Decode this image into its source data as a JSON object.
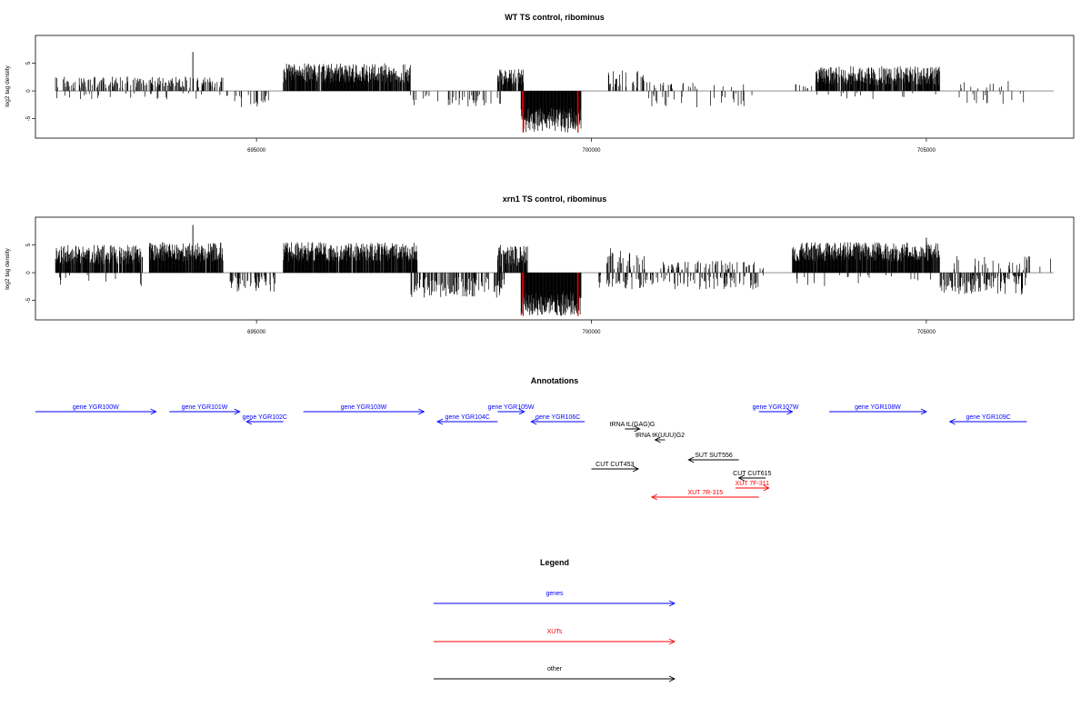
{
  "colors": {
    "gene": "#0000ff",
    "xut": "#ff0000",
    "other": "#000000",
    "signal": "#000000",
    "highlight": "#cc0000",
    "axis": "#000000",
    "baseline": "#808080"
  },
  "chart_data": [
    {
      "type": "bar",
      "title": "WT TS control, ribominus",
      "ylabel": "log2 tag density",
      "xlim": [
        691700,
        707200
      ],
      "ylim": [
        -8.5,
        10
      ],
      "xticks": [
        695000,
        700000,
        705000
      ],
      "xtick_labels": [
        "695000",
        "700000",
        "705000"
      ],
      "yticks": [
        -5,
        0,
        5
      ],
      "ytick_labels": [
        "-5",
        "0",
        "5"
      ],
      "seed": 7,
      "bands": [
        {
          "start": 692000,
          "end": 694500,
          "sign": 1,
          "lo": 0.5,
          "hi": 2.6,
          "density": 0.35,
          "spikes": [
            [
              694050,
              7.0
            ]
          ]
        },
        {
          "start": 692000,
          "end": 694500,
          "sign": -1,
          "lo": 0.4,
          "hi": 1.5,
          "density": 0.05
        },
        {
          "start": 694500,
          "end": 695200,
          "sign": -1,
          "lo": 0.5,
          "hi": 3.0,
          "density": 0.12
        },
        {
          "start": 695400,
          "end": 697300,
          "sign": 1,
          "lo": 1.5,
          "hi": 5.0,
          "density": 0.9
        },
        {
          "start": 697300,
          "end": 698700,
          "sign": -1,
          "lo": 0.5,
          "hi": 2.8,
          "density": 0.15
        },
        {
          "start": 698600,
          "end": 699000,
          "sign": 1,
          "lo": 1.0,
          "hi": 4.0,
          "density": 0.8
        },
        {
          "start": 698950,
          "end": 699850,
          "sign": -1,
          "lo": 3.0,
          "hi": 7.5,
          "density": 1.0,
          "red": [
            698980,
            699800
          ]
        },
        {
          "start": 700200,
          "end": 700800,
          "sign": 1,
          "lo": 0.5,
          "hi": 3.8,
          "density": 0.25
        },
        {
          "start": 700800,
          "end": 702400,
          "sign": 1,
          "lo": 0.4,
          "hi": 1.6,
          "density": 0.12
        },
        {
          "start": 700800,
          "end": 702400,
          "sign": -1,
          "lo": 0.4,
          "hi": 3.0,
          "density": 0.12
        },
        {
          "start": 703000,
          "end": 703300,
          "sign": 1,
          "lo": 0.4,
          "hi": 1.5,
          "density": 0.15
        },
        {
          "start": 703350,
          "end": 705200,
          "sign": 1,
          "lo": 1.0,
          "hi": 4.5,
          "density": 0.85
        },
        {
          "start": 703350,
          "end": 705200,
          "sign": -1,
          "lo": 0.3,
          "hi": 1.5,
          "density": 0.04
        },
        {
          "start": 705400,
          "end": 706500,
          "sign": -1,
          "lo": 0.4,
          "hi": 2.4,
          "density": 0.15
        },
        {
          "start": 705400,
          "end": 706500,
          "sign": 1,
          "lo": 0.4,
          "hi": 1.8,
          "density": 0.08
        }
      ]
    },
    {
      "type": "bar",
      "title": "xrn1 TS control, ribominus",
      "ylabel": "log2 tag density",
      "xlim": [
        691700,
        707200
      ],
      "ylim": [
        -8.5,
        10
      ],
      "xticks": [
        695000,
        700000,
        705000
      ],
      "xtick_labels": [
        "695000",
        "700000",
        "705000"
      ],
      "yticks": [
        -5,
        0,
        5
      ],
      "ytick_labels": [
        "-5",
        "0",
        "5"
      ],
      "seed": 11,
      "bands": [
        {
          "start": 692000,
          "end": 693300,
          "sign": 1,
          "lo": 1.5,
          "hi": 5.0,
          "density": 0.85
        },
        {
          "start": 692000,
          "end": 693300,
          "sign": -1,
          "lo": 0.4,
          "hi": 2.8,
          "density": 0.06
        },
        {
          "start": 693400,
          "end": 694500,
          "sign": 1,
          "lo": 2.0,
          "hi": 5.5,
          "density": 0.95,
          "spikes": [
            [
              694050,
              8.6
            ]
          ]
        },
        {
          "start": 694600,
          "end": 695300,
          "sign": -1,
          "lo": 0.5,
          "hi": 3.5,
          "density": 0.35
        },
        {
          "start": 695400,
          "end": 697400,
          "sign": 1,
          "lo": 2.0,
          "hi": 5.5,
          "density": 0.95
        },
        {
          "start": 697300,
          "end": 698700,
          "sign": -1,
          "lo": 0.8,
          "hi": 4.5,
          "density": 0.5
        },
        {
          "start": 698600,
          "end": 699050,
          "sign": 1,
          "lo": 1.0,
          "hi": 5.0,
          "density": 0.9
        },
        {
          "start": 698950,
          "end": 699850,
          "sign": -1,
          "lo": 3.5,
          "hi": 7.8,
          "density": 1.0,
          "red": [
            698980,
            699800
          ]
        },
        {
          "start": 700200,
          "end": 700800,
          "sign": 1,
          "lo": 0.5,
          "hi": 4.5,
          "density": 0.3
        },
        {
          "start": 700100,
          "end": 702600,
          "sign": -1,
          "lo": 0.4,
          "hi": 3.0,
          "density": 0.25
        },
        {
          "start": 701000,
          "end": 702600,
          "sign": 1,
          "lo": 0.4,
          "hi": 2.2,
          "density": 0.2
        },
        {
          "start": 703000,
          "end": 705200,
          "sign": 1,
          "lo": 2.0,
          "hi": 5.5,
          "density": 0.95,
          "spikes": [
            [
              705000,
              6.3
            ]
          ]
        },
        {
          "start": 703000,
          "end": 705200,
          "sign": -1,
          "lo": 0.3,
          "hi": 2.5,
          "density": 0.06
        },
        {
          "start": 705200,
          "end": 706500,
          "sign": -1,
          "lo": 0.5,
          "hi": 4.0,
          "density": 0.45
        },
        {
          "start": 705400,
          "end": 706900,
          "sign": 1,
          "lo": 0.4,
          "hi": 3.2,
          "density": 0.12
        }
      ]
    }
  ],
  "annotations": {
    "title": "Annotations",
    "xlim": [
      691700,
      707200
    ],
    "features": [
      {
        "label": "gene YGR100W",
        "start": 691700,
        "end": 693500,
        "strand": "+",
        "kind": "gene",
        "row": 0
      },
      {
        "label": "gene YGR101W",
        "start": 693700,
        "end": 694750,
        "strand": "+",
        "kind": "gene",
        "row": 0
      },
      {
        "label": "gene YGR102C",
        "start": 694850,
        "end": 695400,
        "strand": "-",
        "kind": "gene",
        "row": 1
      },
      {
        "label": "gene YGR103W",
        "start": 695700,
        "end": 697500,
        "strand": "+",
        "kind": "gene",
        "row": 0
      },
      {
        "label": "gene YGR104C",
        "start": 697700,
        "end": 698600,
        "strand": "-",
        "kind": "gene",
        "row": 1
      },
      {
        "label": "gene YGR105W",
        "start": 698600,
        "end": 699000,
        "strand": "+",
        "kind": "gene",
        "row": 0
      },
      {
        "label": "gene YGR106C",
        "start": 699100,
        "end": 699900,
        "strand": "-",
        "kind": "gene",
        "row": 1
      },
      {
        "label": "tRNA tL(GAG)G",
        "start": 700500,
        "end": 700720,
        "strand": "+",
        "kind": "other",
        "row": 2
      },
      {
        "label": "tRNA tK(UUU)G2",
        "start": 700950,
        "end": 701100,
        "strand": "-",
        "kind": "other",
        "row": 3
      },
      {
        "label": "SUT SUT556",
        "start": 701450,
        "end": 702200,
        "strand": "-",
        "kind": "other",
        "row": 5
      },
      {
        "label": "CUT CUT453",
        "start": 700000,
        "end": 700700,
        "strand": "+",
        "kind": "other",
        "row": 6
      },
      {
        "label": "CUT CUT615",
        "start": 702200,
        "end": 702600,
        "strand": "-",
        "kind": "other",
        "row": 7
      },
      {
        "label": "XUT 7F-311",
        "start": 702150,
        "end": 702650,
        "strand": "+",
        "kind": "xut",
        "row": 8
      },
      {
        "label": "XUT 7R-315",
        "start": 700900,
        "end": 702500,
        "strand": "-",
        "kind": "xut",
        "row": 9
      },
      {
        "label": "gene YGR107W",
        "start": 702500,
        "end": 703000,
        "strand": "+",
        "kind": "gene",
        "row": 0
      },
      {
        "label": "gene YGR108W",
        "start": 703550,
        "end": 705000,
        "strand": "+",
        "kind": "gene",
        "row": 0
      },
      {
        "label": "gene YGR109C",
        "start": 705350,
        "end": 706500,
        "strand": "-",
        "kind": "gene",
        "row": 1
      }
    ]
  },
  "legend": {
    "title": "Legend",
    "items": [
      {
        "label": "genes",
        "kind": "gene"
      },
      {
        "label": "XUTs",
        "kind": "xut"
      },
      {
        "label": "other",
        "kind": "other"
      }
    ]
  }
}
